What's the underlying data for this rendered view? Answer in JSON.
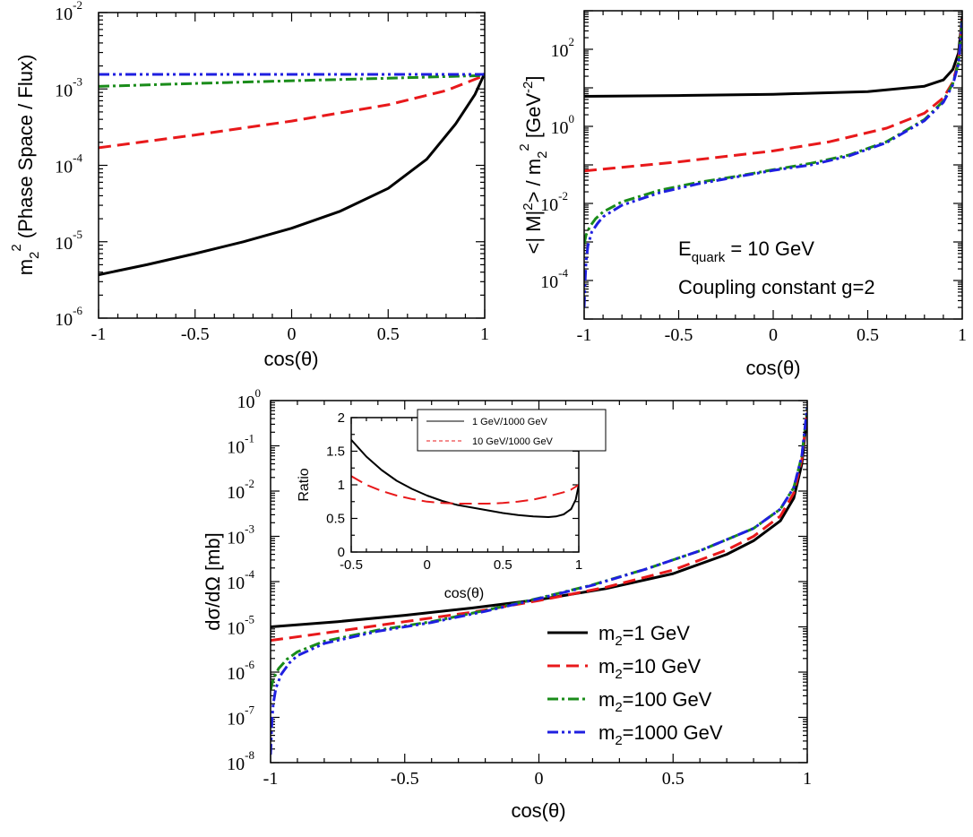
{
  "colors": {
    "m2_1": "#000000",
    "m2_10": "#e8191b",
    "m2_100": "#1a8c1a",
    "m2_1000": "#1f1fe0"
  },
  "chart_data": [
    {
      "id": "topleft",
      "type": "line",
      "xlabel": "cos(θ)",
      "ylabel": "m₂² (Phase Space / Flux)",
      "xlim": [
        -1,
        1
      ],
      "ylim": [
        1e-06,
        0.01
      ],
      "yscale": "log",
      "xticks": [
        "-1",
        "-0.5",
        "0",
        "0.5",
        "1"
      ],
      "yticks": [
        {
          "base": "10",
          "exp": "-6"
        },
        {
          "base": "10",
          "exp": "-5"
        },
        {
          "base": "10",
          "exp": "-4"
        },
        {
          "base": "10",
          "exp": "-3"
        },
        {
          "base": "10",
          "exp": "-2"
        }
      ],
      "series": [
        {
          "key": "m2_1",
          "style": "solid",
          "x": [
            -1,
            -0.75,
            -0.5,
            -0.25,
            0,
            0.25,
            0.5,
            0.7,
            0.85,
            0.95,
            1.0
          ],
          "y": [
            3.7e-06,
            5e-06,
            7e-06,
            1e-05,
            1.5e-05,
            2.5e-05,
            5e-05,
            0.00012,
            0.00035,
            0.00085,
            0.0016
          ]
        },
        {
          "key": "m2_10",
          "style": "dashed",
          "x": [
            -1,
            -0.5,
            0,
            0.5,
            0.8,
            1.0
          ],
          "y": [
            0.00017,
            0.00025,
            0.00038,
            0.00062,
            0.00095,
            0.0015
          ]
        },
        {
          "key": "m2_100",
          "style": "dashdot",
          "x": [
            -1,
            -0.5,
            0,
            0.5,
            1.0
          ],
          "y": [
            0.00108,
            0.00118,
            0.00128,
            0.00138,
            0.0015
          ]
        },
        {
          "key": "m2_1000",
          "style": "dashdotdot",
          "x": [
            -1,
            0,
            1.0
          ],
          "y": [
            0.00155,
            0.00155,
            0.00155
          ]
        }
      ]
    },
    {
      "id": "topright",
      "type": "line",
      "xlabel": "cos(θ)",
      "ylabel": "<| M|²> / m₂² [GeV⁻²]",
      "xlim": [
        -1,
        1
      ],
      "ylim": [
        1e-05,
        1000.0
      ],
      "yscale": "log",
      "xticks": [
        "-1",
        "-0.5",
        "0",
        "0.5",
        "1"
      ],
      "yticks": [
        {
          "base": "10",
          "exp": "-4"
        },
        {
          "base": "10",
          "exp": "-2"
        },
        {
          "base": "10",
          "exp": "0"
        },
        {
          "base": "10",
          "exp": "2"
        }
      ],
      "annotations": [
        "E_quark = 10 GeV",
        "Coupling constant g=2"
      ],
      "annotation_parts": {
        "E": "E",
        "sub": "quark",
        "rest": " = 10 GeV",
        "line2": "Coupling constant g=2"
      },
      "series": [
        {
          "key": "m2_1",
          "style": "solid",
          "x": [
            -1,
            -0.5,
            0,
            0.5,
            0.8,
            0.9,
            0.95,
            0.98,
            1.0
          ],
          "y": [
            6,
            6.3,
            6.8,
            8,
            11,
            16,
            30,
            80,
            700
          ]
        },
        {
          "key": "m2_10",
          "style": "dashed",
          "x": [
            -1,
            -0.5,
            0,
            0.3,
            0.6,
            0.8,
            0.9,
            0.95,
            0.98,
            1.0
          ],
          "y": [
            0.07,
            0.12,
            0.23,
            0.4,
            0.9,
            2.2,
            5.5,
            14,
            50,
            600
          ]
        },
        {
          "key": "m2_100",
          "style": "dashdot",
          "x": [
            -1,
            -0.99,
            -0.97,
            -0.94,
            -0.9,
            -0.8,
            -0.6,
            -0.4,
            -0.2,
            0,
            0.2,
            0.4,
            0.6,
            0.8,
            0.9,
            0.95,
            0.98,
            1.0
          ],
          "y": [
            0.0009,
            0.0015,
            0.0025,
            0.004,
            0.006,
            0.011,
            0.022,
            0.035,
            0.05,
            0.075,
            0.11,
            0.18,
            0.4,
            1.5,
            4.5,
            13,
            45,
            550
          ]
        },
        {
          "key": "m2_1000",
          "style": "dashdotdot",
          "x": [
            -1,
            -0.995,
            -0.99,
            -0.98,
            -0.96,
            -0.93,
            -0.9,
            -0.8,
            -0.6,
            -0.4,
            -0.2,
            0,
            0.2,
            0.4,
            0.6,
            0.8,
            0.9,
            0.95,
            0.98,
            1.0
          ],
          "y": [
            2e-05,
            0.0001,
            0.0003,
            0.0008,
            0.0018,
            0.003,
            0.0045,
            0.009,
            0.019,
            0.032,
            0.048,
            0.072,
            0.1,
            0.17,
            0.38,
            1.4,
            4.2,
            12,
            42,
            500
          ]
        }
      ]
    },
    {
      "id": "bottom",
      "type": "line",
      "xlabel": "cos(θ)",
      "ylabel": "dσ/dΩ [mb]",
      "xlim": [
        -1,
        1
      ],
      "ylim": [
        1e-08,
        1
      ],
      "yscale": "log",
      "xticks": [
        "-1",
        "-0.5",
        "0",
        "0.5",
        "1"
      ],
      "yticks": [
        {
          "base": "10",
          "exp": "-8"
        },
        {
          "base": "10",
          "exp": "-7"
        },
        {
          "base": "10",
          "exp": "-6"
        },
        {
          "base": "10",
          "exp": "-5"
        },
        {
          "base": "10",
          "exp": "-4"
        },
        {
          "base": "10",
          "exp": "-3"
        },
        {
          "base": "10",
          "exp": "-2"
        },
        {
          "base": "10",
          "exp": "-1"
        },
        {
          "base": "10",
          "exp": "0"
        }
      ],
      "legend": {
        "position": "bottom-right",
        "entries": [
          {
            "key": "m2_1",
            "prefix": "m",
            "sub": "2",
            "suffix": "=1 GeV"
          },
          {
            "key": "m2_10",
            "prefix": "m",
            "sub": "2",
            "suffix": "=10 GeV"
          },
          {
            "key": "m2_100",
            "prefix": "m",
            "sub": "2",
            "suffix": "=100 GeV"
          },
          {
            "key": "m2_1000",
            "prefix": "m",
            "sub": "2",
            "suffix": "=1000 GeV"
          }
        ]
      },
      "series": [
        {
          "key": "m2_1",
          "style": "solid",
          "x": [
            -1,
            -0.75,
            -0.5,
            -0.25,
            0,
            0.25,
            0.5,
            0.7,
            0.8,
            0.9,
            0.95,
            0.98,
            1.0
          ],
          "y": [
            1e-05,
            1.3e-05,
            1.8e-05,
            2.6e-05,
            4e-05,
            7e-05,
            0.00015,
            0.0004,
            0.0008,
            0.0022,
            0.007,
            0.04,
            0.5
          ]
        },
        {
          "key": "m2_10",
          "style": "dashed",
          "x": [
            -1,
            -0.75,
            -0.5,
            -0.25,
            0,
            0.25,
            0.5,
            0.7,
            0.8,
            0.9,
            0.95,
            0.98,
            1.0
          ],
          "y": [
            5e-06,
            8e-06,
            1.3e-05,
            2.1e-05,
            3.8e-05,
            7.5e-05,
            0.00018,
            0.0005,
            0.001,
            0.0028,
            0.009,
            0.05,
            0.6
          ]
        },
        {
          "key": "m2_100",
          "style": "dashdot",
          "x": [
            -1,
            -0.99,
            -0.97,
            -0.94,
            -0.9,
            -0.8,
            -0.6,
            -0.4,
            -0.2,
            0,
            0.2,
            0.4,
            0.6,
            0.8,
            0.9,
            0.95,
            0.98,
            1.0
          ],
          "y": [
            4e-07,
            7e-07,
            1.2e-06,
            1.9e-06,
            2.8e-06,
            4.8e-06,
            8.5e-06,
            1.3e-05,
            2.3e-05,
            4.3e-05,
            8.5e-05,
            0.00019,
            0.00048,
            0.0015,
            0.004,
            0.012,
            0.06,
            0.7
          ]
        },
        {
          "key": "m2_1000",
          "style": "dashdotdot",
          "x": [
            -1,
            -0.995,
            -0.99,
            -0.98,
            -0.96,
            -0.93,
            -0.9,
            -0.8,
            -0.6,
            -0.4,
            -0.2,
            0,
            0.2,
            0.4,
            0.6,
            0.8,
            0.9,
            0.95,
            0.98,
            1.0
          ],
          "y": [
            1.5e-08,
            8e-08,
            2e-07,
            4.5e-07,
            9e-07,
            1.6e-06,
            2.3e-06,
            4.3e-06,
            8e-06,
            1.25e-05,
            2.2e-05,
            4.2e-05,
            8.3e-05,
            0.00019,
            0.00048,
            0.0015,
            0.004,
            0.012,
            0.06,
            0.7
          ]
        }
      ]
    },
    {
      "id": "inset",
      "type": "line",
      "xlabel": "cos(θ)",
      "ylabel": "Ratio",
      "xlim": [
        -0.5,
        1
      ],
      "ylim": [
        0,
        2
      ],
      "yscale": "linear",
      "xticks": [
        "-0.5",
        "0",
        "0.5",
        "1"
      ],
      "yticks": [
        "0",
        "0.5",
        "1",
        "1.5",
        "2"
      ],
      "legend": {
        "position": "top",
        "entries": [
          {
            "key": "m2_1",
            "label": "1 GeV/1000 GeV"
          },
          {
            "key": "m2_10",
            "label": "10 GeV/1000 GeV"
          }
        ]
      },
      "series": [
        {
          "key": "m2_1",
          "style": "solid",
          "x": [
            -0.5,
            -0.4,
            -0.3,
            -0.2,
            -0.1,
            0,
            0.1,
            0.2,
            0.3,
            0.4,
            0.5,
            0.6,
            0.7,
            0.8,
            0.85,
            0.9,
            0.95,
            0.98,
            1.0
          ],
          "y": [
            1.67,
            1.42,
            1.22,
            1.06,
            0.94,
            0.84,
            0.76,
            0.7,
            0.66,
            0.62,
            0.58,
            0.55,
            0.53,
            0.52,
            0.53,
            0.56,
            0.64,
            0.78,
            1.0
          ]
        },
        {
          "key": "m2_10",
          "style": "dashed",
          "x": [
            -0.5,
            -0.4,
            -0.3,
            -0.2,
            -0.1,
            0,
            0.1,
            0.2,
            0.3,
            0.4,
            0.5,
            0.6,
            0.7,
            0.8,
            0.9,
            0.95,
            1.0
          ],
          "y": [
            1.13,
            1.0,
            0.91,
            0.84,
            0.79,
            0.75,
            0.73,
            0.72,
            0.72,
            0.72,
            0.73,
            0.75,
            0.78,
            0.83,
            0.89,
            0.93,
            1.0
          ]
        }
      ]
    }
  ]
}
